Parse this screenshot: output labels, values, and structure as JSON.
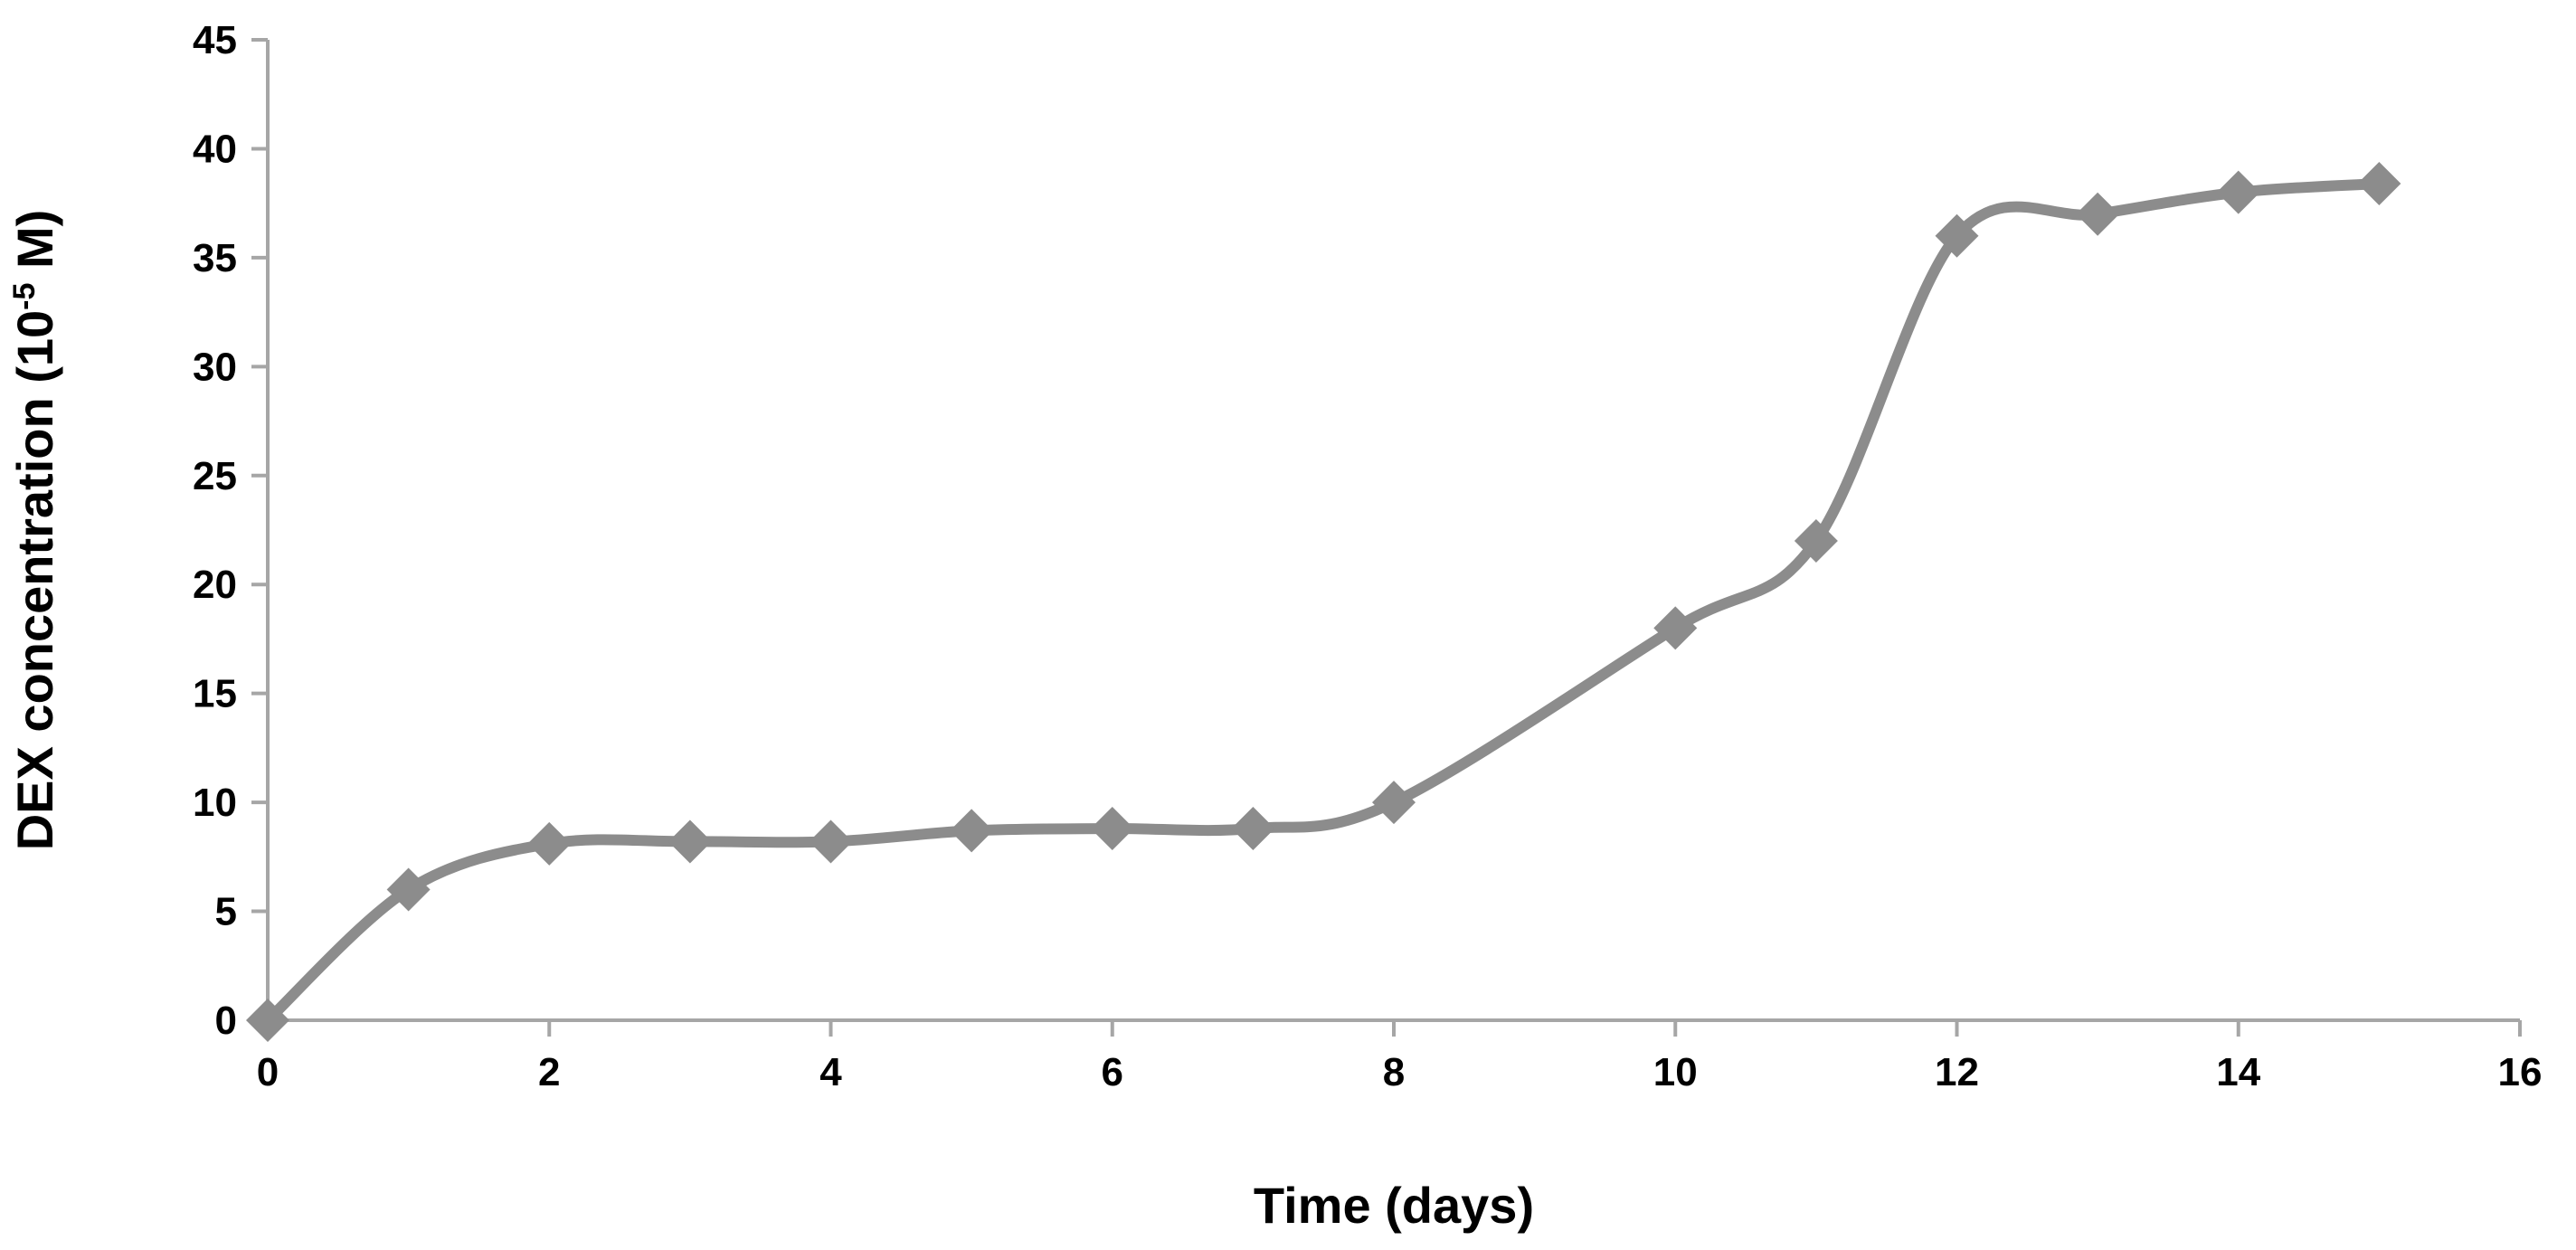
{
  "chart_data": {
    "type": "line",
    "title": "",
    "xlabel": "Time (days)",
    "ylabel": {
      "prefix": "DEX concentration (10",
      "superscript": "-5",
      "suffix": " M)"
    },
    "xlim": [
      0,
      16
    ],
    "ylim": [
      0,
      45
    ],
    "x_ticks": [
      0,
      2,
      4,
      6,
      8,
      10,
      12,
      14,
      16
    ],
    "y_ticks": [
      0,
      5,
      10,
      15,
      20,
      25,
      30,
      35,
      40,
      45
    ],
    "grid": false,
    "legend": "none",
    "line_style": "smoothed",
    "marker": "diamond",
    "colors": {
      "series": "#8c8c8c",
      "axis": "#a6a6a6",
      "text": "#000000"
    },
    "series": [
      {
        "x": [
          0,
          1,
          2,
          3,
          4,
          5,
          6,
          7,
          8,
          10,
          11,
          12,
          13,
          14,
          15
        ],
        "values": [
          0,
          6,
          8.1,
          8.2,
          8.2,
          8.7,
          8.8,
          8.8,
          10,
          18,
          22,
          36,
          37,
          38,
          38.4
        ]
      }
    ]
  }
}
